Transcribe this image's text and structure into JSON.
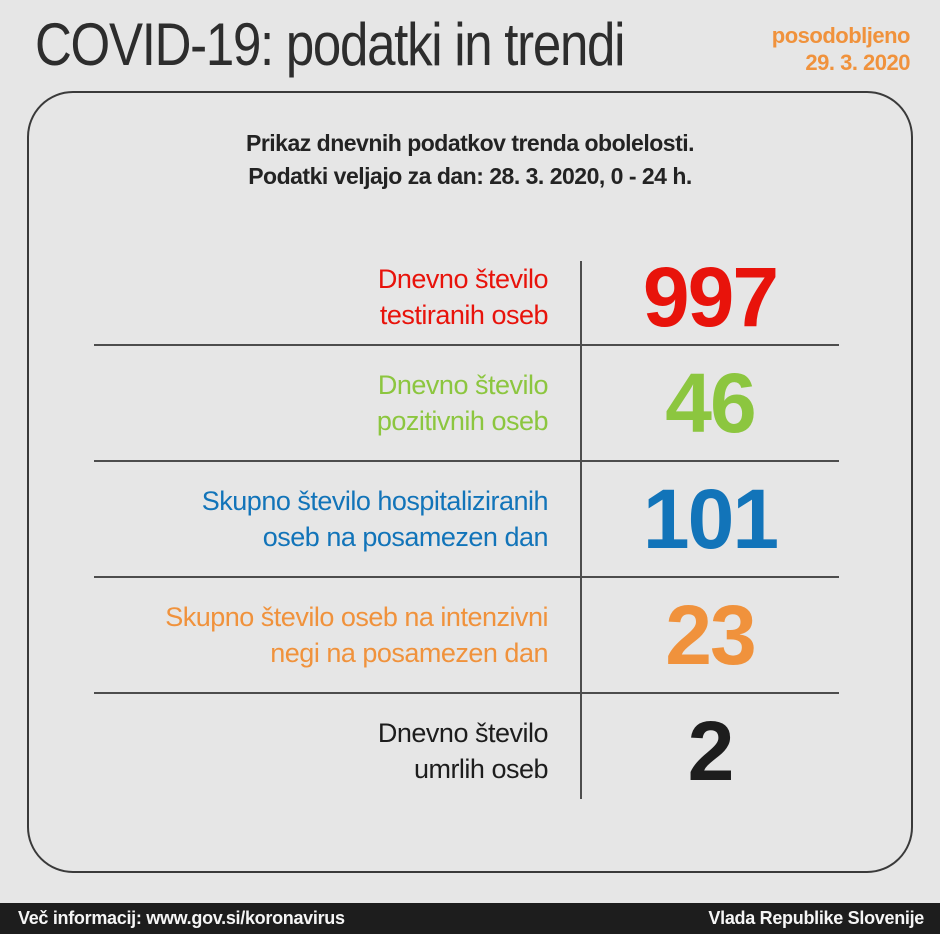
{
  "page": {
    "title": "COVID-19: podatki in trendi",
    "updated_label": "posodobljeno",
    "updated_date": "29. 3. 2020"
  },
  "card": {
    "header_line1": "Prikaz dnevnih podatkov trenda obolelosti.",
    "header_line2": "Podatki veljajo za dan: 28. 3. 2020, 0 - 24 h.",
    "rows": [
      {
        "label_line1": "Dnevno število",
        "label_line2": "testiranih oseb",
        "value": "997",
        "color": "#e8130b"
      },
      {
        "label_line1": "Dnevno število",
        "label_line2": "pozitivnih oseb",
        "value": "46",
        "color": "#8cc63f"
      },
      {
        "label_line1": "Skupno število hospitaliziranih",
        "label_line2": "oseb na posamezen dan",
        "value": "101",
        "color": "#1274b9"
      },
      {
        "label_line1": "Skupno število oseb na intenzivni",
        "label_line2": "negi na posamezen dan",
        "value": "23",
        "color": "#f0923c"
      },
      {
        "label_line1": "Dnevno število",
        "label_line2": "umrlih oseb",
        "value": "2",
        "color": "#1d1d1d"
      }
    ]
  },
  "footer": {
    "left": "Več informacij: www.gov.si/koronavirus",
    "right": "Vlada Republike Slovenije"
  },
  "colors": {
    "background": "#e6e6e6",
    "title_text": "#2d2d2d",
    "updated_accent": "#f0923c",
    "divider": "#4d4d4d",
    "card_border": "#3a3a3a",
    "footer_bg": "#1d1d1d",
    "footer_text": "#f5f5f5",
    "red": "#e8130b",
    "green": "#8cc63f",
    "blue": "#1274b9",
    "orange": "#f0923c",
    "black": "#1d1d1d"
  },
  "chart_data": {
    "type": "table",
    "title": "COVID-19: podatki in trendi",
    "subtitle": "Prikaz dnevnih podatkov trenda obolelosti. Podatki veljajo za dan: 28. 3. 2020, 0 - 24 h.",
    "updated": "29. 3. 2020",
    "categories": [
      "Dnevno število testiranih oseb",
      "Dnevno število pozitivnih oseb",
      "Skupno število hospitaliziranih oseb na posamezen dan",
      "Skupno število oseb na intenzivni negi na posamezen dan",
      "Dnevno število umrlih oseb"
    ],
    "values": [
      997,
      46,
      101,
      23,
      2
    ],
    "value_colors": [
      "#e8130b",
      "#8cc63f",
      "#1274b9",
      "#f0923c",
      "#1d1d1d"
    ]
  }
}
